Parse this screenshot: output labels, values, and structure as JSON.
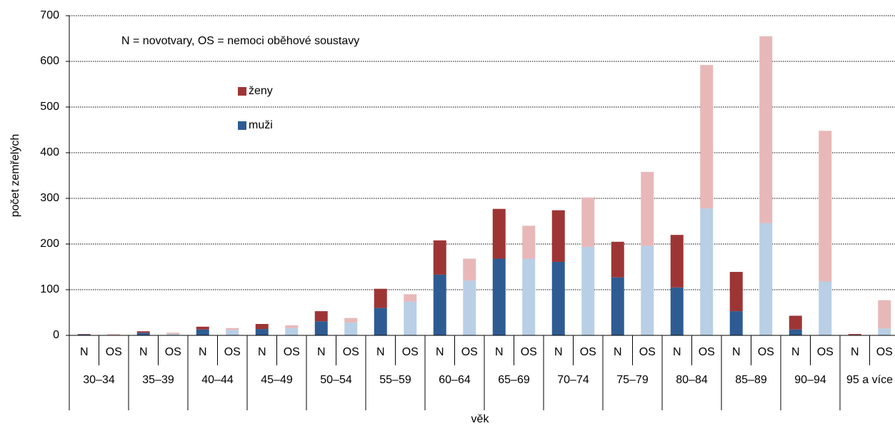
{
  "chart_data": {
    "type": "stacked_bar",
    "annotation": "N = novotvary, OS = nemoci oběhové soustavy",
    "xlabel": "věk",
    "ylabel": "počet zemřelých",
    "groups": [
      "30–34",
      "35–39",
      "40–44",
      "45–49",
      "50–54",
      "55–59",
      "60–64",
      "65–69",
      "70–74",
      "75–79",
      "80–84",
      "85–89",
      "90–94",
      "95 a více"
    ],
    "categories": [
      "N",
      "OS",
      "N",
      "OS",
      "N",
      "OS",
      "N",
      "OS",
      "N",
      "OS",
      "N",
      "OS",
      "N",
      "OS",
      "N",
      "OS",
      "N",
      "OS",
      "N",
      "OS",
      "N",
      "OS",
      "N",
      "OS",
      "N",
      "OS",
      "N",
      "OS"
    ],
    "series": [
      {
        "name": "muži",
        "colors": [
          "#2e5c92",
          "#b8cfe6",
          "#2e5c92",
          "#b8cfe6",
          "#2e5c92",
          "#b8cfe6",
          "#2e5c92",
          "#b8cfe6",
          "#2e5c92",
          "#b8cfe6",
          "#2e5c92",
          "#b8cfe6",
          "#2e5c92",
          "#b8cfe6",
          "#2e5c92",
          "#b8cfe6",
          "#2e5c92",
          "#b8cfe6",
          "#2e5c92",
          "#b8cfe6",
          "#2e5c92",
          "#b8cfe6",
          "#2e5c92",
          "#b8cfe6",
          "#2e5c92",
          "#b8cfe6",
          "#2e5c92",
          "#b8cfe6"
        ],
        "values": [
          2,
          1,
          6,
          3,
          13,
          12,
          14,
          16,
          31,
          28,
          60,
          74,
          133,
          120,
          168,
          168,
          161,
          194,
          127,
          196,
          105,
          278,
          53,
          246,
          13,
          118,
          1,
          15
        ]
      },
      {
        "name": "ženy",
        "colors": [
          "#9e3535",
          "#e8b8b8",
          "#9e3535",
          "#e8b8b8",
          "#9e3535",
          "#e8b8b8",
          "#9e3535",
          "#e8b8b8",
          "#9e3535",
          "#e8b8b8",
          "#9e3535",
          "#e8b8b8",
          "#9e3535",
          "#e8b8b8",
          "#9e3535",
          "#e8b8b8",
          "#9e3535",
          "#e8b8b8",
          "#9e3535",
          "#e8b8b8",
          "#9e3535",
          "#e8b8b8",
          "#9e3535",
          "#e8b8b8",
          "#9e3535",
          "#e8b8b8",
          "#9e3535",
          "#e8b8b8"
        ],
        "values": [
          1,
          2,
          3,
          3,
          6,
          4,
          11,
          6,
          22,
          10,
          42,
          16,
          75,
          48,
          109,
          72,
          113,
          108,
          78,
          162,
          115,
          314,
          86,
          409,
          30,
          330,
          2,
          62
        ]
      }
    ],
    "ylim": [
      0,
      700
    ],
    "yticks": [
      0,
      100,
      200,
      300,
      400,
      500,
      600,
      700
    ],
    "grid": true
  }
}
